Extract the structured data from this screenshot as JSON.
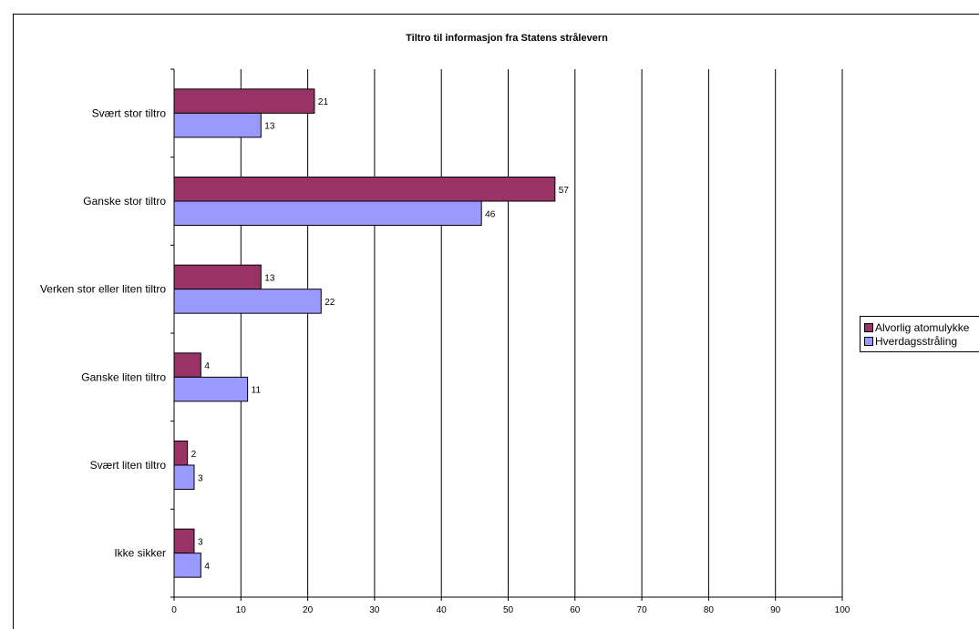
{
  "chart_data": {
    "type": "bar",
    "orientation": "horizontal",
    "title": "Tiltro til informasjon fra Statens strålevern",
    "categories": [
      "Svært stor tiltro",
      "Ganske stor tiltro",
      "Verken stor eller liten tiltro",
      "Ganske liten tiltro",
      "Svært liten tiltro",
      "Ikke sikker"
    ],
    "series": [
      {
        "name": "Alvorlig atomulykke",
        "values": [
          21,
          57,
          13,
          4,
          2,
          3
        ],
        "color": "#993366"
      },
      {
        "name": "Hverdagsstråling",
        "values": [
          13,
          46,
          22,
          11,
          3,
          4
        ],
        "color": "#9999ff"
      }
    ],
    "xlim": [
      0,
      100
    ],
    "xticks": [
      "0",
      "10",
      "20",
      "30",
      "40",
      "50",
      "60",
      "70",
      "80",
      "90",
      "100"
    ],
    "xlabel": "",
    "ylabel": "",
    "grid": true,
    "legend": "right",
    "legend_labels": [
      "Alvorlig atomulykke",
      "Hverdagsstråling"
    ]
  }
}
